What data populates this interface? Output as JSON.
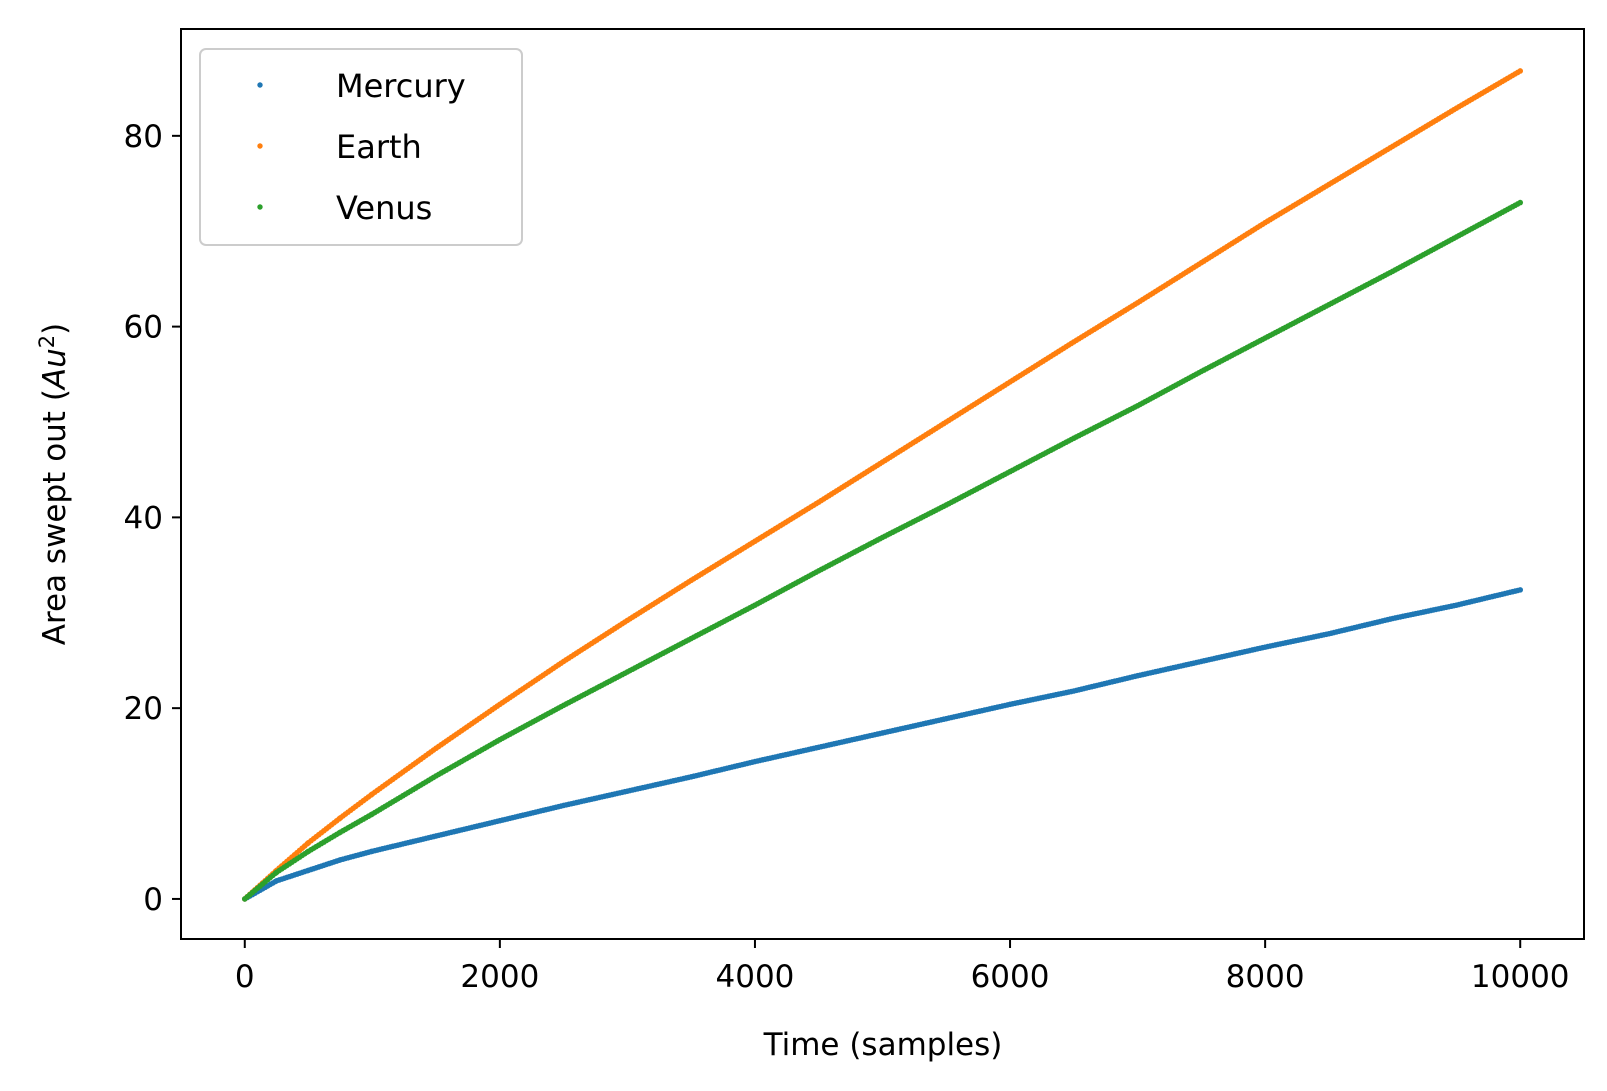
{
  "chart_data": {
    "type": "scatter",
    "title": "",
    "xlabel": "Time (samples)",
    "ylabel_main": "Area swept out (",
    "ylabel_math": "Au",
    "ylabel_sup": "2",
    "ylabel_close": ")",
    "xlim": [
      -500,
      10500
    ],
    "ylim": [
      -4.2,
      91.2
    ],
    "x_ticks": [
      0,
      2000,
      4000,
      6000,
      8000,
      10000
    ],
    "x_tick_labels": [
      "0",
      "2000",
      "4000",
      "6000",
      "8000",
      "10000"
    ],
    "y_ticks": [
      0,
      20,
      40,
      60,
      80
    ],
    "y_tick_labels": [
      "0",
      "20",
      "40",
      "60",
      "80"
    ],
    "grid": false,
    "legend_position": "top-left",
    "series": [
      {
        "name": "Mercury",
        "color": "#1f77b4",
        "x": [
          0,
          250,
          500,
          750,
          1000,
          1500,
          2000,
          2500,
          3000,
          3500,
          4000,
          4500,
          5000,
          5500,
          6000,
          6500,
          7000,
          7500,
          8000,
          8500,
          9000,
          9500,
          10000
        ],
        "y": [
          0,
          1.9,
          3.0,
          4.1,
          5.0,
          6.6,
          8.2,
          9.8,
          11.3,
          12.8,
          14.4,
          15.9,
          17.4,
          18.9,
          20.4,
          21.8,
          23.4,
          24.9,
          26.4,
          27.8,
          29.4,
          30.8,
          32.4
        ]
      },
      {
        "name": "Earth",
        "color": "#ff7f0e",
        "x": [
          0,
          250,
          500,
          750,
          1000,
          1500,
          2000,
          2500,
          3000,
          3500,
          4000,
          4500,
          5000,
          5500,
          6000,
          6500,
          7000,
          7500,
          8000,
          8500,
          9000,
          9500,
          10000
        ],
        "y": [
          0,
          3.0,
          5.9,
          8.5,
          11.0,
          15.8,
          20.4,
          24.9,
          29.2,
          33.4,
          37.5,
          41.6,
          45.8,
          50.0,
          54.2,
          58.4,
          62.5,
          66.7,
          70.9,
          74.9,
          78.9,
          82.9,
          86.8
        ]
      },
      {
        "name": "Venus",
        "color": "#2ca02c",
        "x": [
          0,
          250,
          500,
          750,
          1000,
          1500,
          2000,
          2500,
          3000,
          3500,
          4000,
          4500,
          5000,
          5500,
          6000,
          6500,
          7000,
          7500,
          8000,
          8500,
          9000,
          9500,
          10000
        ],
        "y": [
          0,
          2.8,
          5.0,
          7.0,
          8.9,
          12.9,
          16.7,
          20.3,
          23.8,
          27.3,
          30.8,
          34.4,
          37.9,
          41.3,
          44.8,
          48.3,
          51.7,
          55.3,
          58.8,
          62.3,
          65.8,
          69.4,
          73.0
        ]
      }
    ]
  }
}
